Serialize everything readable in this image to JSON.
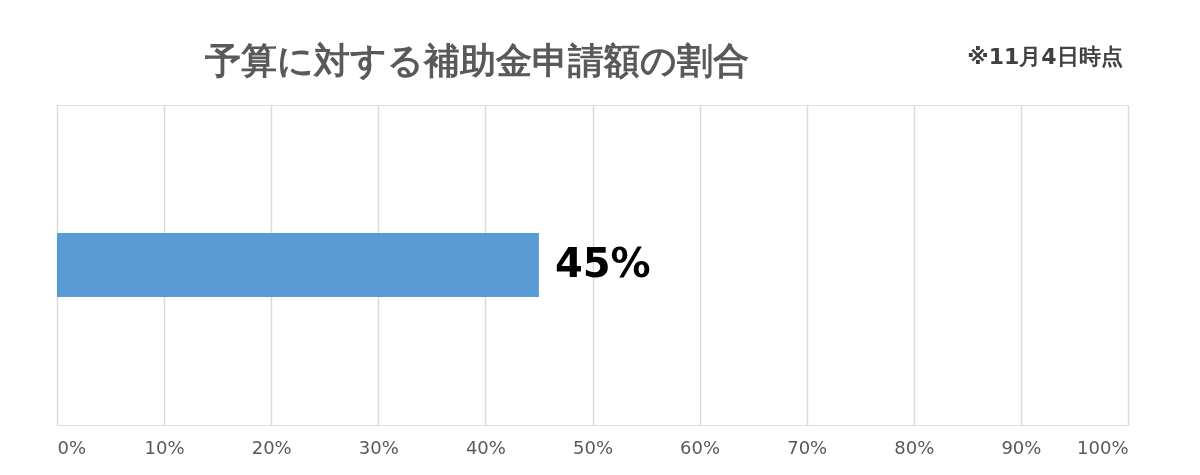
{
  "chart_data": {
    "type": "bar",
    "orientation": "horizontal",
    "title": "予算に対する補助金申請額の割合",
    "annotations": [
      "※11月4日時点"
    ],
    "categories": [
      null
    ],
    "values": [
      45
    ],
    "color": "#5b9bd5",
    "value_labels": [
      "45%"
    ],
    "xlim": [
      0,
      100
    ],
    "xticks": [
      {
        "value": 0,
        "label": "0%"
      },
      {
        "value": 10,
        "label": "10%"
      },
      {
        "value": 20,
        "label": "20%"
      },
      {
        "value": 30,
        "label": "30%"
      },
      {
        "value": 40,
        "label": "40%"
      },
      {
        "value": 50,
        "label": "50%"
      },
      {
        "value": 60,
        "label": "60%"
      },
      {
        "value": 70,
        "label": "70%"
      },
      {
        "value": 80,
        "label": "80%"
      },
      {
        "value": 90,
        "label": "90%"
      },
      {
        "value": 100,
        "label": "100%"
      }
    ],
    "grid": "x"
  }
}
